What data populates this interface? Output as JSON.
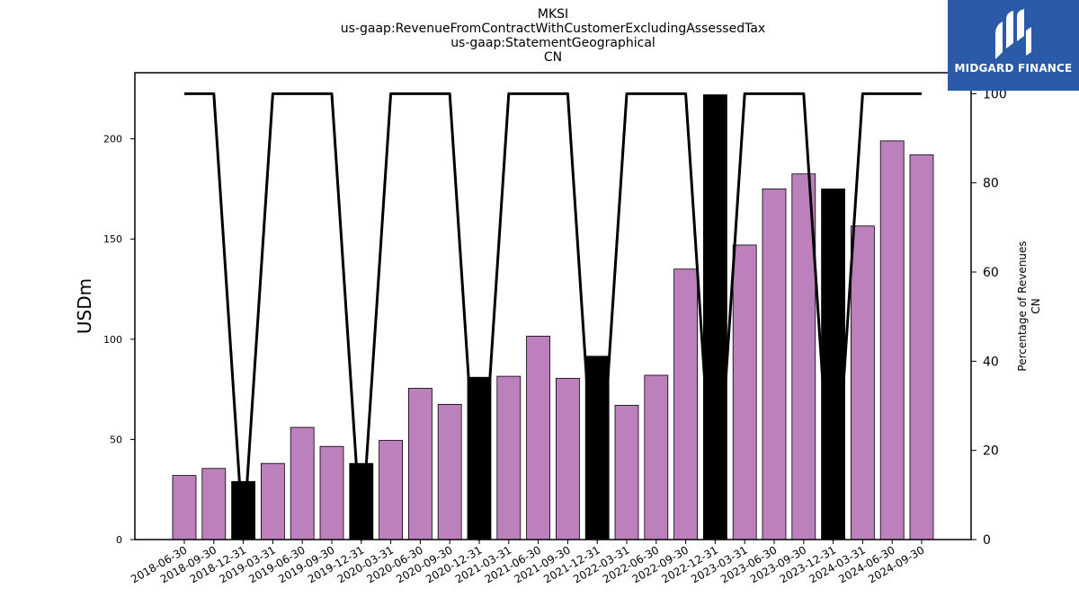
{
  "title_lines": [
    "MKSI",
    "us-gaap:RevenueFromContractWithCustomerExcludingAssessedTax",
    "us-gaap:StatementGeographical",
    "CN"
  ],
  "logo": {
    "text": "MIDGARD FINANCE",
    "mark": "midgard-logo-icon",
    "color": "#2b5aa8"
  },
  "chart_data": {
    "type": "bar",
    "categories": [
      "2018-06-30",
      "2018-09-30",
      "2018-12-31",
      "2019-03-31",
      "2019-06-30",
      "2019-09-30",
      "2019-12-31",
      "2020-03-31",
      "2020-06-30",
      "2020-09-30",
      "2020-12-31",
      "2021-03-31",
      "2021-06-30",
      "2021-09-30",
      "2021-12-31",
      "2022-03-31",
      "2022-06-30",
      "2022-09-30",
      "2022-12-31",
      "2023-03-31",
      "2023-06-30",
      "2023-09-30",
      "2023-12-31",
      "2024-03-31",
      "2024-06-30",
      "2024-09-30"
    ],
    "series": [
      {
        "type": "bar",
        "axis": "left",
        "values": [
          32,
          35.5,
          29,
          38,
          56,
          46.5,
          38,
          49.5,
          75.5,
          67.5,
          81,
          81.5,
          101.5,
          80.5,
          91.5,
          67,
          82,
          135,
          222,
          147,
          175,
          182.5,
          175,
          156.5,
          199,
          192
        ],
        "colors": [
          "#bc80bd",
          "#bc80bd",
          "#000000",
          "#bc80bd",
          "#bc80bd",
          "#bc80bd",
          "#000000",
          "#bc80bd",
          "#bc80bd",
          "#bc80bd",
          "#000000",
          "#bc80bd",
          "#bc80bd",
          "#bc80bd",
          "#000000",
          "#bc80bd",
          "#bc80bd",
          "#bc80bd",
          "#000000",
          "#bc80bd",
          "#bc80bd",
          "#bc80bd",
          "#000000",
          "#bc80bd",
          "#bc80bd",
          "#bc80bd"
        ]
      },
      {
        "type": "line",
        "axis": "right",
        "color": "#000000",
        "values": [
          100,
          100,
          0,
          100,
          100,
          100,
          0,
          100,
          100,
          100,
          0,
          100,
          100,
          100,
          0,
          100,
          100,
          100,
          0,
          100,
          100,
          100,
          0,
          100,
          100,
          100
        ]
      }
    ],
    "ylabel": "USDm",
    "ylabel_right": [
      "Percentage of Revenues",
      "CN"
    ],
    "ylim": [
      0,
      233
    ],
    "yticks": [
      0,
      50,
      100,
      150,
      200
    ],
    "ylim_right": [
      0,
      104.7
    ],
    "yticks_right": [
      0,
      20,
      40,
      60,
      80,
      100
    ],
    "grid": false,
    "legend": "none"
  }
}
